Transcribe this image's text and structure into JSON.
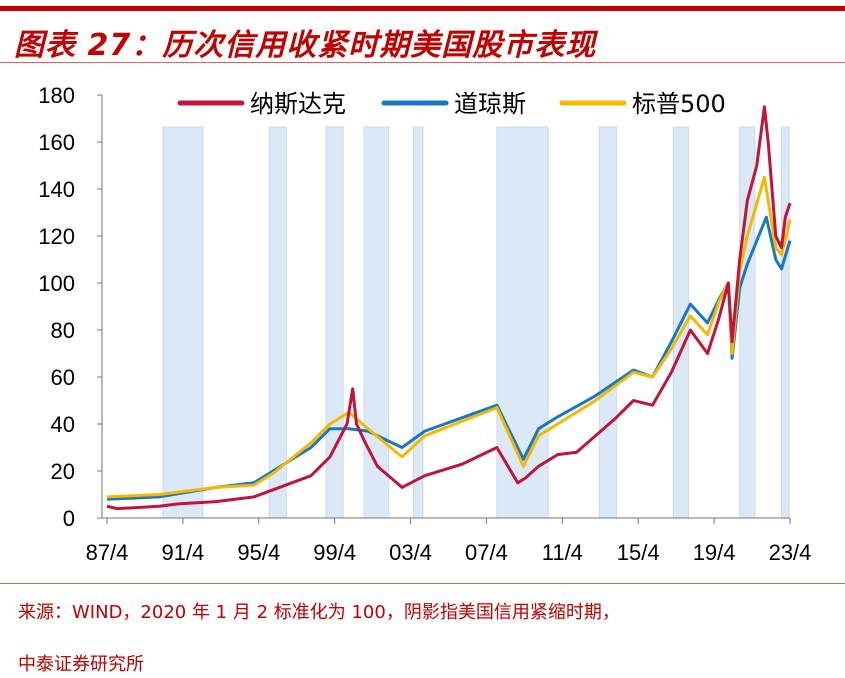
{
  "title": "图表 27：历次信用收紧时期美国股市表现",
  "source": "来源：WIND，2020 年 1 月 2 标准化为 100，阴影指美国信用紧缩时期，",
  "institution": "中泰证券研究所",
  "colors": {
    "nasdaq": "#c0143c",
    "dow": "#1a78c2",
    "sp500": "#f5b800",
    "shade": "#dbe9f7",
    "accent": "#c00000"
  },
  "chart_data": {
    "type": "line",
    "title": "历次信用收紧时期美国股市表现",
    "xlabel": "",
    "ylabel": "",
    "ylim": [
      0,
      180
    ],
    "yticks": [
      0,
      20,
      40,
      60,
      80,
      100,
      120,
      140,
      160,
      180
    ],
    "xlim": [
      1987.25,
      2023.25
    ],
    "xticks": [
      {
        "v": 1987.25,
        "label": "87/4"
      },
      {
        "v": 1991.25,
        "label": "91/4"
      },
      {
        "v": 1995.25,
        "label": "95/4"
      },
      {
        "v": 1999.25,
        "label": "99/4"
      },
      {
        "v": 2003.25,
        "label": "03/4"
      },
      {
        "v": 2007.25,
        "label": "07/4"
      },
      {
        "v": 2011.25,
        "label": "11/4"
      },
      {
        "v": 2015.25,
        "label": "15/4"
      },
      {
        "v": 2019.25,
        "label": "19/4"
      },
      {
        "v": 2023.25,
        "label": "23/4"
      }
    ],
    "legend_position": "top",
    "shaded_periods": [
      [
        1990.2,
        1992.3
      ],
      [
        1995.8,
        1996.7
      ],
      [
        1998.8,
        1999.7
      ],
      [
        2000.8,
        2002.1
      ],
      [
        2003.4,
        2003.9
      ],
      [
        2007.8,
        2010.5
      ],
      [
        2013.2,
        2014.1
      ],
      [
        2017.1,
        2017.9
      ],
      [
        2020.6,
        2021.4
      ],
      [
        2022.8,
        2023.2
      ]
    ],
    "series": [
      {
        "name": "纳斯达克",
        "key": "nasdaq",
        "points": [
          [
            1987.25,
            5
          ],
          [
            1987.8,
            4
          ],
          [
            1990,
            5
          ],
          [
            1991,
            6
          ],
          [
            1993,
            7
          ],
          [
            1995,
            9
          ],
          [
            1996,
            12
          ],
          [
            1998,
            18
          ],
          [
            1999,
            26
          ],
          [
            1999.9,
            40
          ],
          [
            2000.2,
            55
          ],
          [
            2000.4,
            40
          ],
          [
            2000.8,
            33
          ],
          [
            2001.5,
            22
          ],
          [
            2002.8,
            13
          ],
          [
            2004,
            18
          ],
          [
            2006,
            23
          ],
          [
            2007.8,
            30
          ],
          [
            2008.9,
            15
          ],
          [
            2009.3,
            17
          ],
          [
            2010,
            22
          ],
          [
            2011,
            27
          ],
          [
            2012,
            28
          ],
          [
            2013,
            35
          ],
          [
            2014,
            42
          ],
          [
            2015,
            50
          ],
          [
            2016,
            48
          ],
          [
            2017,
            62
          ],
          [
            2018,
            80
          ],
          [
            2018.9,
            70
          ],
          [
            2019.5,
            85
          ],
          [
            2020,
            100
          ],
          [
            2020.2,
            75
          ],
          [
            2020.6,
            110
          ],
          [
            2021,
            135
          ],
          [
            2021.5,
            150
          ],
          [
            2021.9,
            175
          ],
          [
            2022.1,
            160
          ],
          [
            2022.5,
            120
          ],
          [
            2022.8,
            115
          ],
          [
            2023,
            128
          ],
          [
            2023.25,
            134
          ]
        ]
      },
      {
        "name": "道琼斯",
        "key": "dow",
        "points": [
          [
            1987.25,
            8
          ],
          [
            1990,
            9
          ],
          [
            1993,
            13
          ],
          [
            1995,
            15
          ],
          [
            1996,
            20
          ],
          [
            1998,
            30
          ],
          [
            1999,
            38
          ],
          [
            2000,
            38
          ],
          [
            2001,
            37
          ],
          [
            2002.8,
            30
          ],
          [
            2004,
            37
          ],
          [
            2007.8,
            48
          ],
          [
            2009.2,
            25
          ],
          [
            2010,
            38
          ],
          [
            2011,
            43
          ],
          [
            2013,
            52
          ],
          [
            2015,
            63
          ],
          [
            2016,
            60
          ],
          [
            2017,
            75
          ],
          [
            2018,
            91
          ],
          [
            2018.9,
            83
          ],
          [
            2019.5,
            93
          ],
          [
            2020,
            100
          ],
          [
            2020.2,
            68
          ],
          [
            2020.6,
            98
          ],
          [
            2021,
            108
          ],
          [
            2022,
            128
          ],
          [
            2022.5,
            110
          ],
          [
            2022.8,
            106
          ],
          [
            2023.25,
            118
          ]
        ]
      },
      {
        "name": "标普500",
        "key": "sp500",
        "points": [
          [
            1987.25,
            9
          ],
          [
            1990,
            10
          ],
          [
            1993,
            13
          ],
          [
            1995,
            14
          ],
          [
            1996,
            19
          ],
          [
            1998,
            32
          ],
          [
            1999,
            40
          ],
          [
            2000,
            45
          ],
          [
            2001,
            38
          ],
          [
            2002.8,
            26
          ],
          [
            2004,
            35
          ],
          [
            2007.8,
            47
          ],
          [
            2009.2,
            22
          ],
          [
            2010,
            35
          ],
          [
            2011,
            40
          ],
          [
            2013,
            50
          ],
          [
            2015,
            62
          ],
          [
            2016,
            60
          ],
          [
            2017,
            72
          ],
          [
            2018,
            86
          ],
          [
            2018.9,
            78
          ],
          [
            2019.5,
            92
          ],
          [
            2020,
            100
          ],
          [
            2020.2,
            70
          ],
          [
            2020.6,
            105
          ],
          [
            2021,
            120
          ],
          [
            2021.9,
            145
          ],
          [
            2022.5,
            115
          ],
          [
            2022.8,
            112
          ],
          [
            2023.25,
            127
          ]
        ]
      }
    ]
  }
}
